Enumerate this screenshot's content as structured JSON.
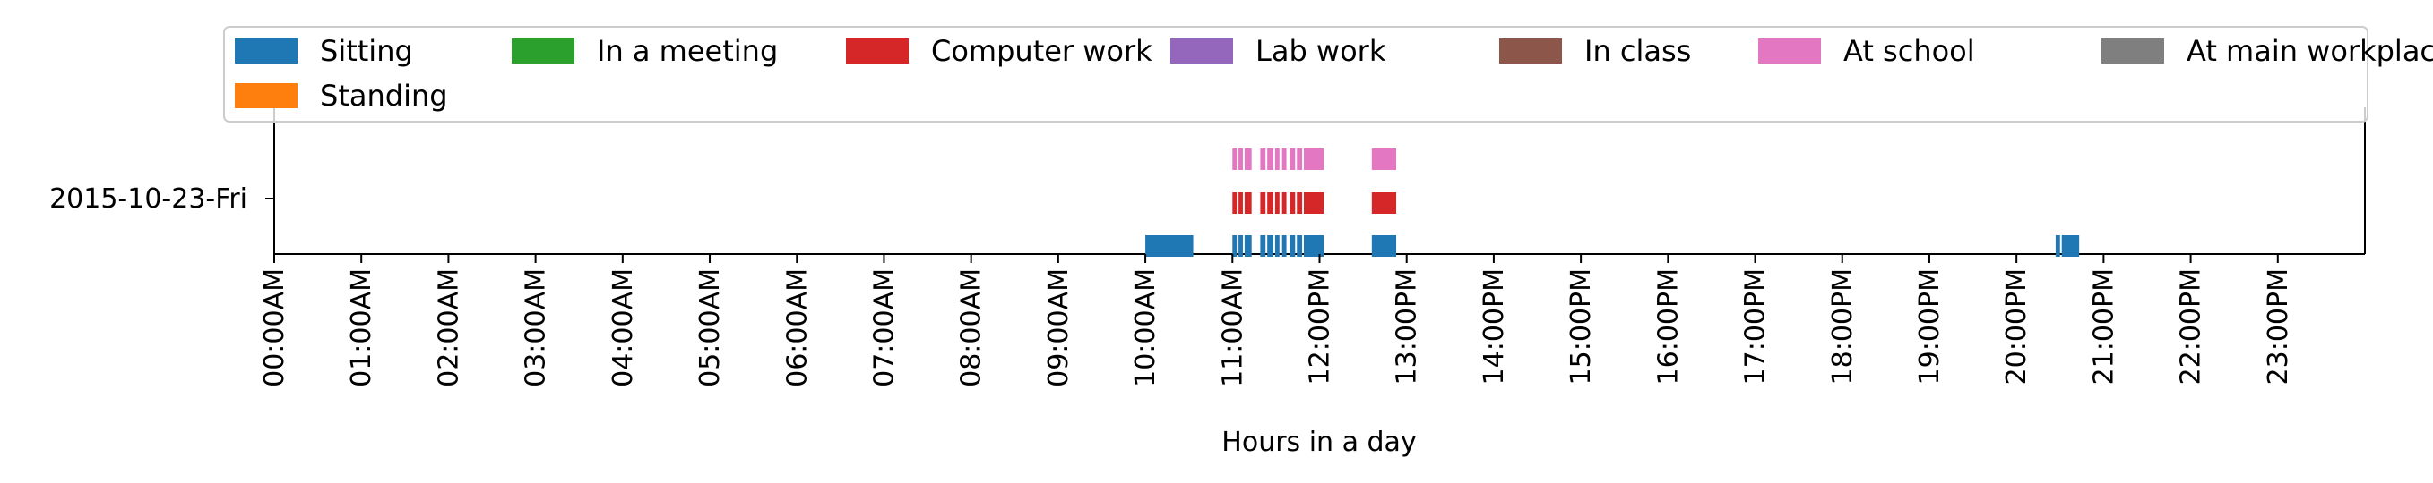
{
  "chart_data": {
    "type": "bar",
    "xlabel": "Hours in a day",
    "xlim": [
      0,
      24
    ],
    "day_label": "2015-10-23-Fri",
    "x_ticks": [
      "00:00AM",
      "01:00AM",
      "02:00AM",
      "03:00AM",
      "04:00AM",
      "05:00AM",
      "06:00AM",
      "07:00AM",
      "08:00AM",
      "09:00AM",
      "10:00AM",
      "11:00AM",
      "12:00PM",
      "13:00PM",
      "14:00PM",
      "15:00PM",
      "16:00PM",
      "17:00PM",
      "18:00PM",
      "19:00PM",
      "20:00PM",
      "21:00PM",
      "22:00PM",
      "23:00PM"
    ],
    "legend": {
      "placement": "top",
      "entries": [
        {
          "name": "Sitting",
          "color": "#1f77b4"
        },
        {
          "name": "In a meeting",
          "color": "#2ca02c"
        },
        {
          "name": "Computer work",
          "color": "#d62728"
        },
        {
          "name": "Lab work",
          "color": "#9467bd"
        },
        {
          "name": "In class",
          "color": "#8c564b"
        },
        {
          "name": "At school",
          "color": "#e377c2"
        },
        {
          "name": "At main workplace",
          "color": "#7f7f7f"
        },
        {
          "name": "Standing",
          "color": "#ff7f0e"
        }
      ]
    },
    "series": [
      {
        "name": "Sitting",
        "color": "#1f77b4",
        "row": 0,
        "intervals": [
          [
            10.0,
            10.55
          ],
          [
            11.0,
            11.05
          ],
          [
            11.07,
            11.12
          ],
          [
            11.14,
            11.22
          ],
          [
            11.32,
            11.38
          ],
          [
            11.4,
            11.47
          ],
          [
            11.49,
            11.54
          ],
          [
            11.57,
            11.62
          ],
          [
            11.66,
            11.72
          ],
          [
            11.74,
            11.8
          ],
          [
            11.82,
            12.05
          ],
          [
            12.6,
            12.88
          ],
          [
            20.45,
            20.5
          ],
          [
            20.52,
            20.72
          ]
        ]
      },
      {
        "name": "Computer work",
        "color": "#d62728",
        "row": 1,
        "intervals": [
          [
            11.0,
            11.05
          ],
          [
            11.07,
            11.12
          ],
          [
            11.14,
            11.22
          ],
          [
            11.32,
            11.38
          ],
          [
            11.4,
            11.47
          ],
          [
            11.49,
            11.54
          ],
          [
            11.57,
            11.62
          ],
          [
            11.66,
            11.72
          ],
          [
            11.74,
            11.8
          ],
          [
            11.82,
            12.05
          ],
          [
            12.6,
            12.88
          ]
        ]
      },
      {
        "name": "At school",
        "color": "#e377c2",
        "row": 2,
        "intervals": [
          [
            11.0,
            11.05
          ],
          [
            11.07,
            11.12
          ],
          [
            11.14,
            11.22
          ],
          [
            11.32,
            11.38
          ],
          [
            11.4,
            11.47
          ],
          [
            11.49,
            11.54
          ],
          [
            11.57,
            11.62
          ],
          [
            11.66,
            11.72
          ],
          [
            11.74,
            11.8
          ],
          [
            11.82,
            12.05
          ],
          [
            12.6,
            12.88
          ]
        ]
      }
    ]
  }
}
